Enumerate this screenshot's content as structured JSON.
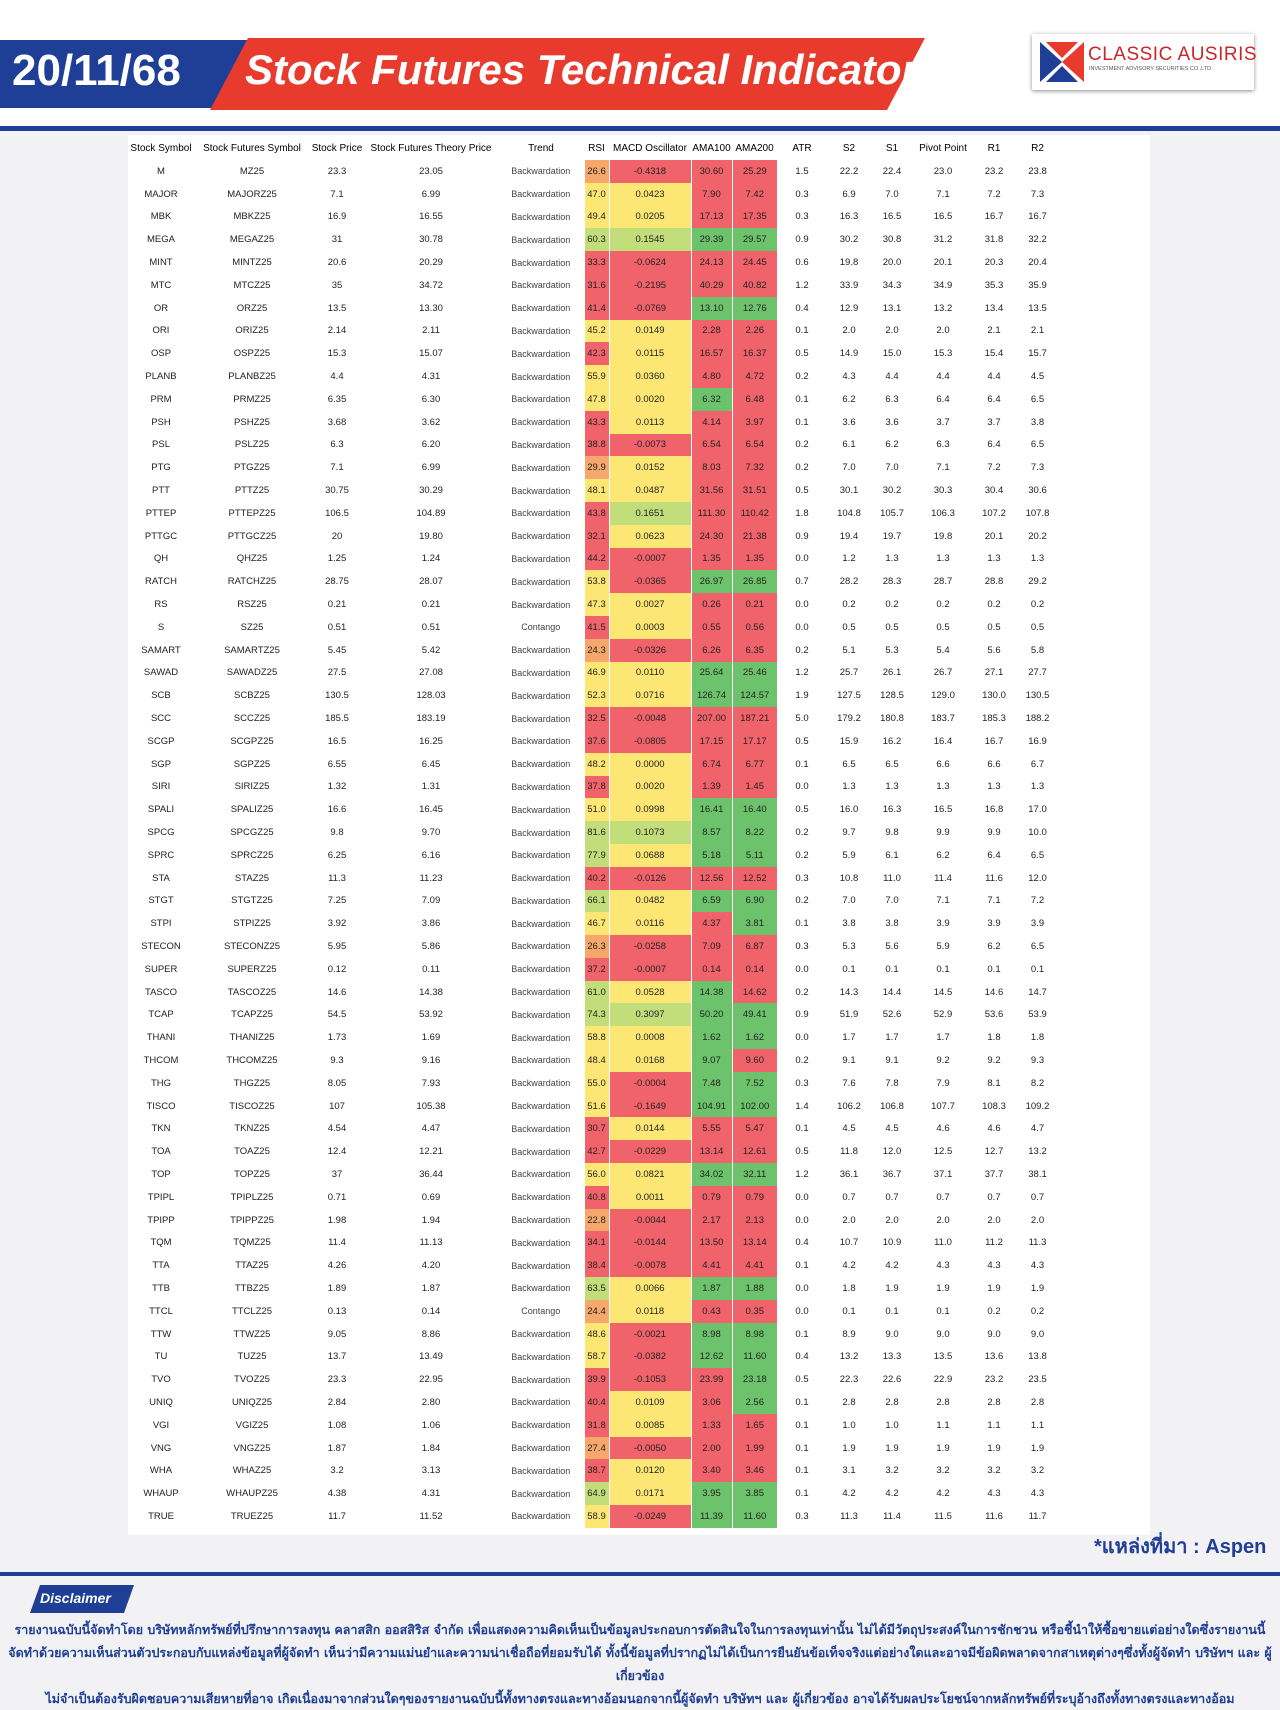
{
  "header": {
    "date": "20/11/68",
    "title": "Stock Futures Technical Indicator",
    "brand": "CLASSIC AUSIRIS",
    "brand_sub": "INVESTMENT ADVISORY SECURITIES CO.,LTD."
  },
  "colors": {
    "navy": "#1f3f96",
    "red_banner": "#e83b2e",
    "heat_red": "#f0636b",
    "heat_orange": "#f6a86c",
    "heat_yellow": "#fce774",
    "heat_light_green": "#c2de7b",
    "heat_green": "#6dc36b"
  },
  "table": {
    "columns": [
      "Stock Symbol",
      "Stock Futures Symbol",
      "Stock Price",
      "Stock Futures Theory Price",
      "Trend",
      "RSI",
      "MACD Oscillator",
      "AMA100",
      "AMA200",
      "ATR",
      "S2",
      "S1",
      "Pivot Point",
      "R1",
      "R2"
    ],
    "rows": [
      [
        "M",
        "MZ25",
        "23.3",
        "23.05",
        "Backwardation",
        "26.6",
        "-0.4318",
        "30.60",
        "25.29",
        "1.5",
        "22.2",
        "22.4",
        "23.0",
        "23.2",
        "23.8"
      ],
      [
        "MAJOR",
        "MAJORZ25",
        "7.1",
        "6.99",
        "Backwardation",
        "47.0",
        "0.0423",
        "7.90",
        "7.42",
        "0.3",
        "6.9",
        "7.0",
        "7.1",
        "7.2",
        "7.3"
      ],
      [
        "MBK",
        "MBKZ25",
        "16.9",
        "16.55",
        "Backwardation",
        "49.4",
        "0.0205",
        "17.13",
        "17.35",
        "0.3",
        "16.3",
        "16.5",
        "16.5",
        "16.7",
        "16.7"
      ],
      [
        "MEGA",
        "MEGAZ25",
        "31",
        "30.78",
        "Backwardation",
        "60.3",
        "0.1545",
        "29.39",
        "29.57",
        "0.9",
        "30.2",
        "30.8",
        "31.2",
        "31.8",
        "32.2"
      ],
      [
        "MINT",
        "MINTZ25",
        "20.6",
        "20.29",
        "Backwardation",
        "33.3",
        "-0.0624",
        "24.13",
        "24.45",
        "0.6",
        "19.8",
        "20.0",
        "20.1",
        "20.3",
        "20.4"
      ],
      [
        "MTC",
        "MTCZ25",
        "35",
        "34.72",
        "Backwardation",
        "31.6",
        "-0.2195",
        "40.29",
        "40.82",
        "1.2",
        "33.9",
        "34.3",
        "34.9",
        "35.3",
        "35.9"
      ],
      [
        "OR",
        "ORZ25",
        "13.5",
        "13.30",
        "Backwardation",
        "41.4",
        "-0.0769",
        "13.10",
        "12.76",
        "0.4",
        "12.9",
        "13.1",
        "13.2",
        "13.4",
        "13.5"
      ],
      [
        "ORI",
        "ORIZ25",
        "2.14",
        "2.11",
        "Backwardation",
        "45.2",
        "0.0149",
        "2.28",
        "2.26",
        "0.1",
        "2.0",
        "2.0",
        "2.0",
        "2.1",
        "2.1"
      ],
      [
        "OSP",
        "OSPZ25",
        "15.3",
        "15.07",
        "Backwardation",
        "42.3",
        "0.0115",
        "16.57",
        "16.37",
        "0.5",
        "14.9",
        "15.0",
        "15.3",
        "15.4",
        "15.7"
      ],
      [
        "PLANB",
        "PLANBZ25",
        "4.4",
        "4.31",
        "Backwardation",
        "55.9",
        "0.0360",
        "4.80",
        "4.72",
        "0.2",
        "4.3",
        "4.4",
        "4.4",
        "4.4",
        "4.5"
      ],
      [
        "PRM",
        "PRMZ25",
        "6.35",
        "6.30",
        "Backwardation",
        "47.8",
        "0.0020",
        "6.32",
        "6.48",
        "0.1",
        "6.2",
        "6.3",
        "6.4",
        "6.4",
        "6.5"
      ],
      [
        "PSH",
        "PSHZ25",
        "3.68",
        "3.62",
        "Backwardation",
        "43.3",
        "0.0113",
        "4.14",
        "3.97",
        "0.1",
        "3.6",
        "3.6",
        "3.7",
        "3.7",
        "3.8"
      ],
      [
        "PSL",
        "PSLZ25",
        "6.3",
        "6.20",
        "Backwardation",
        "38.8",
        "-0.0073",
        "6.54",
        "6.54",
        "0.2",
        "6.1",
        "6.2",
        "6.3",
        "6.4",
        "6.5"
      ],
      [
        "PTG",
        "PTGZ25",
        "7.1",
        "6.99",
        "Backwardation",
        "29.9",
        "0.0152",
        "8.03",
        "7.32",
        "0.2",
        "7.0",
        "7.0",
        "7.1",
        "7.2",
        "7.3"
      ],
      [
        "PTT",
        "PTTZ25",
        "30.75",
        "30.29",
        "Backwardation",
        "48.1",
        "0.0487",
        "31.56",
        "31.51",
        "0.5",
        "30.1",
        "30.2",
        "30.3",
        "30.4",
        "30.6"
      ],
      [
        "PTTEP",
        "PTTEPZ25",
        "106.5",
        "104.89",
        "Backwardation",
        "43.8",
        "0.1651",
        "111.30",
        "110.42",
        "1.8",
        "104.8",
        "105.7",
        "106.3",
        "107.2",
        "107.8"
      ],
      [
        "PTTGC",
        "PTTGCZ25",
        "20",
        "19.80",
        "Backwardation",
        "32.1",
        "0.0623",
        "24.30",
        "21.38",
        "0.9",
        "19.4",
        "19.7",
        "19.8",
        "20.1",
        "20.2"
      ],
      [
        "QH",
        "QHZ25",
        "1.25",
        "1.24",
        "Backwardation",
        "44.2",
        "-0.0007",
        "1.35",
        "1.35",
        "0.0",
        "1.2",
        "1.3",
        "1.3",
        "1.3",
        "1.3"
      ],
      [
        "RATCH",
        "RATCHZ25",
        "28.75",
        "28.07",
        "Backwardation",
        "53.8",
        "-0.0365",
        "26.97",
        "26.85",
        "0.7",
        "28.2",
        "28.3",
        "28.7",
        "28.8",
        "29.2"
      ],
      [
        "RS",
        "RSZ25",
        "0.21",
        "0.21",
        "Backwardation",
        "47.3",
        "0.0027",
        "0.26",
        "0.21",
        "0.0",
        "0.2",
        "0.2",
        "0.2",
        "0.2",
        "0.2"
      ],
      [
        "S",
        "SZ25",
        "0.51",
        "0.51",
        "Contango",
        "41.5",
        "0.0003",
        "0.55",
        "0.56",
        "0.0",
        "0.5",
        "0.5",
        "0.5",
        "0.5",
        "0.5"
      ],
      [
        "SAMART",
        "SAMARTZ25",
        "5.45",
        "5.42",
        "Backwardation",
        "24.3",
        "-0.0326",
        "6.26",
        "6.35",
        "0.2",
        "5.1",
        "5.3",
        "5.4",
        "5.6",
        "5.8"
      ],
      [
        "SAWAD",
        "SAWADZ25",
        "27.5",
        "27.08",
        "Backwardation",
        "46.9",
        "0.0110",
        "25.64",
        "25.46",
        "1.2",
        "25.7",
        "26.1",
        "26.7",
        "27.1",
        "27.7"
      ],
      [
        "SCB",
        "SCBZ25",
        "130.5",
        "128.03",
        "Backwardation",
        "52.3",
        "0.0716",
        "126.74",
        "124.57",
        "1.9",
        "127.5",
        "128.5",
        "129.0",
        "130.0",
        "130.5"
      ],
      [
        "SCC",
        "SCCZ25",
        "185.5",
        "183.19",
        "Backwardation",
        "32.5",
        "-0.0048",
        "207.00",
        "187.21",
        "5.0",
        "179.2",
        "180.8",
        "183.7",
        "185.3",
        "188.2"
      ],
      [
        "SCGP",
        "SCGPZ25",
        "16.5",
        "16.25",
        "Backwardation",
        "37.6",
        "-0.0805",
        "17.15",
        "17.17",
        "0.5",
        "15.9",
        "16.2",
        "16.4",
        "16.7",
        "16.9"
      ],
      [
        "SGP",
        "SGPZ25",
        "6.55",
        "6.45",
        "Backwardation",
        "48.2",
        "0.0000",
        "6.74",
        "6.77",
        "0.1",
        "6.5",
        "6.5",
        "6.6",
        "6.6",
        "6.7"
      ],
      [
        "SIRI",
        "SIRIZ25",
        "1.32",
        "1.31",
        "Backwardation",
        "37.8",
        "0.0020",
        "1.39",
        "1.45",
        "0.0",
        "1.3",
        "1.3",
        "1.3",
        "1.3",
        "1.3"
      ],
      [
        "SPALI",
        "SPALIZ25",
        "16.6",
        "16.45",
        "Backwardation",
        "51.0",
        "0.0998",
        "16.41",
        "16.40",
        "0.5",
        "16.0",
        "16.3",
        "16.5",
        "16.8",
        "17.0"
      ],
      [
        "SPCG",
        "SPCGZ25",
        "9.8",
        "9.70",
        "Backwardation",
        "81.6",
        "0.1073",
        "8.57",
        "8.22",
        "0.2",
        "9.7",
        "9.8",
        "9.9",
        "9.9",
        "10.0"
      ],
      [
        "SPRC",
        "SPRCZ25",
        "6.25",
        "6.16",
        "Backwardation",
        "77.9",
        "0.0688",
        "5.18",
        "5.11",
        "0.2",
        "5.9",
        "6.1",
        "6.2",
        "6.4",
        "6.5"
      ],
      [
        "STA",
        "STAZ25",
        "11.3",
        "11.23",
        "Backwardation",
        "40.2",
        "-0.0126",
        "12.56",
        "12.52",
        "0.3",
        "10.8",
        "11.0",
        "11.4",
        "11.6",
        "12.0"
      ],
      [
        "STGT",
        "STGTZ25",
        "7.25",
        "7.09",
        "Backwardation",
        "66.1",
        "0.0482",
        "6.59",
        "6.90",
        "0.2",
        "7.0",
        "7.0",
        "7.1",
        "7.1",
        "7.2"
      ],
      [
        "STPI",
        "STPIZ25",
        "3.92",
        "3.86",
        "Backwardation",
        "46.7",
        "0.0116",
        "4.37",
        "3.81",
        "0.1",
        "3.8",
        "3.8",
        "3.9",
        "3.9",
        "3.9"
      ],
      [
        "STECON",
        "STECONZ25",
        "5.95",
        "5.86",
        "Backwardation",
        "26.3",
        "-0.0258",
        "7.09",
        "6.87",
        "0.3",
        "5.3",
        "5.6",
        "5.9",
        "6.2",
        "6.5"
      ],
      [
        "SUPER",
        "SUPERZ25",
        "0.12",
        "0.11",
        "Backwardation",
        "37.2",
        "-0.0007",
        "0.14",
        "0.14",
        "0.0",
        "0.1",
        "0.1",
        "0.1",
        "0.1",
        "0.1"
      ],
      [
        "TASCO",
        "TASCOZ25",
        "14.6",
        "14.38",
        "Backwardation",
        "61.0",
        "0.0528",
        "14.38",
        "14.62",
        "0.2",
        "14.3",
        "14.4",
        "14.5",
        "14.6",
        "14.7"
      ],
      [
        "TCAP",
        "TCAPZ25",
        "54.5",
        "53.92",
        "Backwardation",
        "74.3",
        "0.3097",
        "50.20",
        "49.41",
        "0.9",
        "51.9",
        "52.6",
        "52.9",
        "53.6",
        "53.9"
      ],
      [
        "THANI",
        "THANIZ25",
        "1.73",
        "1.69",
        "Backwardation",
        "58.8",
        "0.0008",
        "1.62",
        "1.62",
        "0.0",
        "1.7",
        "1.7",
        "1.7",
        "1.8",
        "1.8"
      ],
      [
        "THCOM",
        "THCOMZ25",
        "9.3",
        "9.16",
        "Backwardation",
        "48.4",
        "0.0168",
        "9.07",
        "9.60",
        "0.2",
        "9.1",
        "9.1",
        "9.2",
        "9.2",
        "9.3"
      ],
      [
        "THG",
        "THGZ25",
        "8.05",
        "7.93",
        "Backwardation",
        "55.0",
        "-0.0004",
        "7.48",
        "7.52",
        "0.3",
        "7.6",
        "7.8",
        "7.9",
        "8.1",
        "8.2"
      ],
      [
        "TISCO",
        "TISCOZ25",
        "107",
        "105.38",
        "Backwardation",
        "51.6",
        "-0.1649",
        "104.91",
        "102.00",
        "1.4",
        "106.2",
        "106.8",
        "107.7",
        "108.3",
        "109.2"
      ],
      [
        "TKN",
        "TKNZ25",
        "4.54",
        "4.47",
        "Backwardation",
        "30.7",
        "0.0144",
        "5.55",
        "5.47",
        "0.1",
        "4.5",
        "4.5",
        "4.6",
        "4.6",
        "4.7"
      ],
      [
        "TOA",
        "TOAZ25",
        "12.4",
        "12.21",
        "Backwardation",
        "42.7",
        "-0.0229",
        "13.14",
        "12.61",
        "0.5",
        "11.8",
        "12.0",
        "12.5",
        "12.7",
        "13.2"
      ],
      [
        "TOP",
        "TOPZ25",
        "37",
        "36.44",
        "Backwardation",
        "56.0",
        "0.0821",
        "34.02",
        "32.11",
        "1.2",
        "36.1",
        "36.7",
        "37.1",
        "37.7",
        "38.1"
      ],
      [
        "TPIPL",
        "TPIPLZ25",
        "0.71",
        "0.69",
        "Backwardation",
        "40.8",
        "0.0011",
        "0.79",
        "0.79",
        "0.0",
        "0.7",
        "0.7",
        "0.7",
        "0.7",
        "0.7"
      ],
      [
        "TPIPP",
        "TPIPPZ25",
        "1.98",
        "1.94",
        "Backwardation",
        "22.8",
        "-0.0044",
        "2.17",
        "2.13",
        "0.0",
        "2.0",
        "2.0",
        "2.0",
        "2.0",
        "2.0"
      ],
      [
        "TQM",
        "TQMZ25",
        "11.4",
        "11.13",
        "Backwardation",
        "34.1",
        "-0.0144",
        "13.50",
        "13.14",
        "0.4",
        "10.7",
        "10.9",
        "11.0",
        "11.2",
        "11.3"
      ],
      [
        "TTA",
        "TTAZ25",
        "4.26",
        "4.20",
        "Backwardation",
        "38.4",
        "-0.0078",
        "4.41",
        "4.41",
        "0.1",
        "4.2",
        "4.2",
        "4.3",
        "4.3",
        "4.3"
      ],
      [
        "TTB",
        "TTBZ25",
        "1.89",
        "1.87",
        "Backwardation",
        "63.5",
        "0.0066",
        "1.87",
        "1.88",
        "0.0",
        "1.8",
        "1.9",
        "1.9",
        "1.9",
        "1.9"
      ],
      [
        "TTCL",
        "TTCLZ25",
        "0.13",
        "0.14",
        "Contango",
        "24.4",
        "0.0118",
        "0.43",
        "0.35",
        "0.0",
        "0.1",
        "0.1",
        "0.1",
        "0.2",
        "0.2"
      ],
      [
        "TTW",
        "TTWZ25",
        "9.05",
        "8.86",
        "Backwardation",
        "48.6",
        "-0.0021",
        "8.98",
        "8.98",
        "0.1",
        "8.9",
        "9.0",
        "9.0",
        "9.0",
        "9.0"
      ],
      [
        "TU",
        "TUZ25",
        "13.7",
        "13.49",
        "Backwardation",
        "58.7",
        "-0.0382",
        "12.62",
        "11.60",
        "0.4",
        "13.2",
        "13.3",
        "13.5",
        "13.6",
        "13.8"
      ],
      [
        "TVO",
        "TVOZ25",
        "23.3",
        "22.95",
        "Backwardation",
        "39.9",
        "-0.1053",
        "23.99",
        "23.18",
        "0.5",
        "22.3",
        "22.6",
        "22.9",
        "23.2",
        "23.5"
      ],
      [
        "UNIQ",
        "UNIQZ25",
        "2.84",
        "2.80",
        "Backwardation",
        "40.4",
        "0.0109",
        "3.06",
        "2.56",
        "0.1",
        "2.8",
        "2.8",
        "2.8",
        "2.8",
        "2.8"
      ],
      [
        "VGI",
        "VGIZ25",
        "1.08",
        "1.06",
        "Backwardation",
        "31.8",
        "0.0085",
        "1.33",
        "1.65",
        "0.1",
        "1.0",
        "1.0",
        "1.1",
        "1.1",
        "1.1"
      ],
      [
        "VNG",
        "VNGZ25",
        "1.87",
        "1.84",
        "Backwardation",
        "27.4",
        "-0.0050",
        "2.00",
        "1.99",
        "0.1",
        "1.9",
        "1.9",
        "1.9",
        "1.9",
        "1.9"
      ],
      [
        "WHA",
        "WHAZ25",
        "3.2",
        "3.13",
        "Backwardation",
        "38.7",
        "0.0120",
        "3.40",
        "3.46",
        "0.1",
        "3.1",
        "3.2",
        "3.2",
        "3.2",
        "3.2"
      ],
      [
        "WHAUP",
        "WHAUPZ25",
        "4.38",
        "4.31",
        "Backwardation",
        "64.9",
        "0.0171",
        "3.95",
        "3.85",
        "0.1",
        "4.2",
        "4.2",
        "4.2",
        "4.3",
        "4.3"
      ],
      [
        "TRUE",
        "TRUEZ25",
        "11.7",
        "11.52",
        "Backwardation",
        "58.9",
        "-0.0249",
        "11.39",
        "11.60",
        "0.3",
        "11.3",
        "11.4",
        "11.5",
        "11.6",
        "11.7"
      ]
    ]
  },
  "source_note": "*แหล่งที่มา : Aspen",
  "disclaimer": {
    "label": "Disclaimer",
    "line1": "รายงานฉบับนี้จัดทำโดย บริษัทหลักทรัพย์ที่ปรึกษาการลงทุน คลาสสิก ออสสิริส จำกัด เพื่อแสดงความคิดเห็นเป็นข้อมูลประกอบการตัดสินใจในการลงทุนเท่านั้น ไม่ได้มีวัตถุประสงค์ในการชักชวน หรือชี้นำให้ซื้อขายแต่อย่างใดซึ่งรายงานนี้",
    "line2": "จัดทำด้วยความเห็นส่วนตัวประกอบกับแหล่งข้อมูลที่ผู้จัดทำ เห็นว่ามีความแม่นยำและความน่าเชื่อถือที่ยอมรับได้ ทั้งนี้ข้อมูลที่ปรากฏไม่ได้เป็นการยืนยันข้อเท็จจริงแต่อย่างใดและอาจมีข้อผิดพลาดจากสาเหตุต่างๆซึ่งทั้งผู้จัดทำ บริษัทฯ และ ผู้เกี่ยวข้อง",
    "line3": "ไม่จำเป็นต้องรับผิดชอบความเสียหายที่อาจ เกิดเนื่องมาจากส่วนใดๆของรายงานฉบับนี้ทั้งทางตรงและทางอ้อมนอกจากนี้ผู้จัดทำ บริษัทฯ และ ผู้เกี่ยวข้อง อาจได้รับผลประโยชน์จากหลักทรัพย์ที่ระบุอ้างถึงทั้งทางตรงและทางอ้อม"
  }
}
